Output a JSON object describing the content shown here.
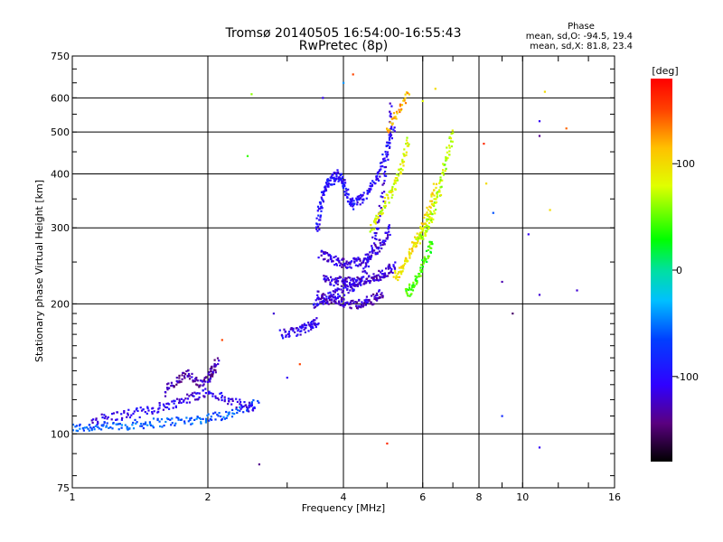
{
  "header": {
    "title_line1": "Tromsø 20140505 16:54:00-16:55:43",
    "title_line2": "RwPretec (8p)"
  },
  "phase_box": {
    "title": "Phase",
    "line_o": "mean, sd,O: -94.5, 19.4",
    "line_x": "mean, sd,X: 81.8, 23.4"
  },
  "colorbar": {
    "label": "[deg]",
    "ticks": [
      100,
      0,
      -100
    ],
    "vmin": -180,
    "vmax": 180,
    "colormap": "rainbow (black-purple-blue-cyan-green-yellow-red)"
  },
  "chart_data": {
    "type": "scatter",
    "xlabel": "Frequency [MHz]",
    "ylabel": "Stationary phase Virtual Height [km]",
    "xscale": "log",
    "yscale": "log",
    "xlim": [
      1,
      16
    ],
    "ylim": [
      75,
      750
    ],
    "xticks": [
      1,
      2,
      4,
      6,
      8,
      10,
      16
    ],
    "xtick_labels": [
      "1",
      "2",
      "4",
      "6",
      "8",
      "10",
      "16"
    ],
    "yticks": [
      75,
      100,
      200,
      300,
      400,
      500,
      600,
      750
    ],
    "ytick_labels": [
      "75",
      "100",
      "200",
      "300",
      "400",
      "500",
      "600",
      "750"
    ],
    "grid": true,
    "color_variable": "Phase [deg]",
    "traces": [
      {
        "x": [
          1.0,
          1.1,
          1.2,
          1.35,
          1.5,
          1.7,
          1.9,
          2.1,
          2.3,
          2.6
        ],
        "y": [
          103,
          104,
          104,
          105,
          106,
          107,
          108,
          110,
          112,
          118
        ],
        "phase": -60
      },
      {
        "x": [
          1.1,
          1.25,
          1.4,
          1.55,
          1.7,
          1.85,
          2.0,
          2.2,
          2.4,
          2.55
        ],
        "y": [
          108,
          110,
          112,
          115,
          118,
          122,
          125,
          120,
          116,
          115
        ],
        "phase": -110
      },
      {
        "x": [
          1.6,
          1.7,
          1.8,
          1.9,
          2.0,
          2.05,
          2.1
        ],
        "y": [
          125,
          132,
          138,
          130,
          135,
          140,
          148
        ],
        "phase": -130
      },
      {
        "x": [
          2.9,
          3.1,
          3.25,
          3.4,
          3.5
        ],
        "y": [
          170,
          172,
          175,
          178,
          182
        ],
        "phase": -110
      },
      {
        "x": [
          3.45,
          3.6,
          3.8,
          4.0,
          4.2,
          4.4,
          4.6,
          4.8,
          5.0,
          5.1
        ],
        "y": [
          200,
          205,
          210,
          215,
          220,
          230,
          260,
          320,
          420,
          600
        ],
        "phase": -110
      },
      {
        "x": [
          3.5,
          3.55,
          3.6,
          3.7,
          3.8,
          3.9,
          4.0,
          4.1,
          4.2,
          4.4,
          4.6,
          4.8,
          5.0,
          5.2
        ],
        "y": [
          300,
          330,
          360,
          380,
          390,
          400,
          380,
          350,
          340,
          350,
          370,
          400,
          460,
          520
        ],
        "phase": -100
      },
      {
        "x": [
          3.55,
          3.7,
          3.9,
          4.1,
          4.3,
          4.5,
          4.7,
          4.9,
          5.1
        ],
        "y": [
          260,
          255,
          250,
          248,
          250,
          255,
          265,
          280,
          300
        ],
        "phase": -115
      },
      {
        "x": [
          3.5,
          3.7,
          3.9,
          4.1,
          4.3,
          4.5,
          4.7,
          4.9
        ],
        "y": [
          210,
          205,
          202,
          200,
          200,
          202,
          206,
          212
        ],
        "phase": -125
      },
      {
        "x": [
          3.6,
          3.8,
          4.0,
          4.2,
          4.4,
          4.6,
          4.8,
          5.0,
          5.2
        ],
        "y": [
          228,
          226,
          225,
          225,
          226,
          228,
          232,
          238,
          245
        ],
        "phase": -120
      },
      {
        "x": [
          4.6,
          4.8,
          5.0,
          5.2,
          5.4,
          5.6
        ],
        "y": [
          300,
          320,
          350,
          380,
          420,
          480
        ],
        "phase": 80
      },
      {
        "x": [
          5.2,
          5.4,
          5.6,
          5.8,
          6.0,
          6.2,
          6.4
        ],
        "y": [
          230,
          240,
          260,
          280,
          300,
          330,
          380
        ],
        "phase": 100
      },
      {
        "x": [
          5.8,
          6.0,
          6.2,
          6.4,
          6.6,
          6.8,
          7.0
        ],
        "y": [
          280,
          290,
          310,
          340,
          380,
          440,
          500
        ],
        "phase": 70
      },
      {
        "x": [
          5.5,
          5.7,
          5.9,
          6.1,
          6.3
        ],
        "y": [
          210,
          220,
          235,
          255,
          280
        ],
        "phase": 40
      },
      {
        "x": [
          5.0,
          5.3,
          5.6
        ],
        "y": [
          500,
          560,
          620
        ],
        "phase": 120
      }
    ],
    "scatter_points": [
      {
        "x": 2.5,
        "y": 612,
        "phase": 60
      },
      {
        "x": 2.45,
        "y": 440,
        "phase": 40
      },
      {
        "x": 2.6,
        "y": 85,
        "phase": -140
      },
      {
        "x": 2.15,
        "y": 165,
        "phase": 150
      },
      {
        "x": 8.2,
        "y": 470,
        "phase": 160
      },
      {
        "x": 8.3,
        "y": 380,
        "phase": 100
      },
      {
        "x": 8.6,
        "y": 325,
        "phase": -60
      },
      {
        "x": 9.0,
        "y": 225,
        "phase": -130
      },
      {
        "x": 9.5,
        "y": 190,
        "phase": -150
      },
      {
        "x": 9.0,
        "y": 110,
        "phase": -80
      },
      {
        "x": 10.3,
        "y": 290,
        "phase": -110
      },
      {
        "x": 10.9,
        "y": 530,
        "phase": -110
      },
      {
        "x": 10.9,
        "y": 490,
        "phase": -140
      },
      {
        "x": 10.9,
        "y": 210,
        "phase": -120
      },
      {
        "x": 10.9,
        "y": 93,
        "phase": -110
      },
      {
        "x": 11.2,
        "y": 620,
        "phase": 100
      },
      {
        "x": 11.5,
        "y": 330,
        "phase": 100
      },
      {
        "x": 12.5,
        "y": 510,
        "phase": 140
      },
      {
        "x": 13.2,
        "y": 215,
        "phase": -120
      },
      {
        "x": 5.0,
        "y": 95,
        "phase": 160
      },
      {
        "x": 4.2,
        "y": 680,
        "phase": 150
      },
      {
        "x": 4.0,
        "y": 650,
        "phase": -40
      },
      {
        "x": 3.2,
        "y": 145,
        "phase": 150
      },
      {
        "x": 3.0,
        "y": 135,
        "phase": -110
      },
      {
        "x": 3.6,
        "y": 600,
        "phase": -110
      },
      {
        "x": 2.8,
        "y": 190,
        "phase": -120
      },
      {
        "x": 6.0,
        "y": 590,
        "phase": 80
      },
      {
        "x": 6.4,
        "y": 630,
        "phase": 100
      }
    ]
  }
}
